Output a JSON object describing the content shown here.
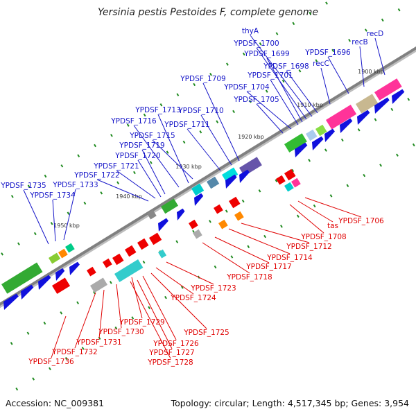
{
  "title": "Yersinia pestis Pestoides F, complete genome",
  "footer": {
    "accession": "Accession: NC_009381",
    "topology": "Topology: circular; Length: 4,517,345 bp; Genes: 3,954"
  },
  "colors": {
    "forward_label": "#1515c8",
    "reverse_label": "#e00000",
    "backbone": "#808080",
    "tick": "#1f8a1f"
  },
  "kbp_marks": [
    "1900 kbp",
    "1910 kbp",
    "1920 kbp",
    "1930 kbp",
    "1940 kbp",
    "1950 kbp"
  ],
  "forward_genes": [
    "recD",
    "recB",
    "YPDSF_1696",
    "recC",
    "thyA",
    "YPDSF_1700",
    "YPDSF_1699",
    "YPDSF_1698",
    "YPDSF_1701",
    "YPDSF_1709",
    "YPDSF_1704",
    "YPDSF_1705",
    "YPDSF_1713",
    "YPDSF_1710",
    "YPDSF_1716",
    "YPDSF_1711",
    "YPDSF_1715",
    "YPDSF_1719",
    "YPDSF_1720",
    "YPDSF_1721",
    "YPDSF_1722",
    "YPDSF_1735",
    "YPDSF_1733",
    "YPDSF_1734"
  ],
  "reverse_genes": [
    "YPDSF_1706",
    "tas",
    "YPDSF_1708",
    "YPDSF_1712",
    "YPDSF_1714",
    "YPDSF_1717",
    "YPDSF_1718",
    "YPDSF_1723",
    "YPDSF_1724",
    "YPDSF_1729",
    "YPDSF_1725",
    "YPDSF_1730",
    "YPDSF_1726",
    "YPDSF_1731",
    "YPDSF_1727",
    "YPDSF_1728",
    "YPDSF_1732",
    "YPDSF_1736"
  ]
}
